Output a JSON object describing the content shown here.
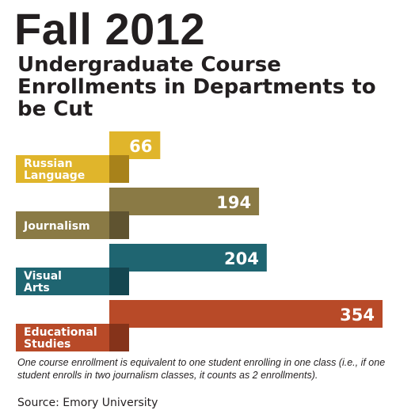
{
  "chart_data": {
    "type": "bar",
    "title": "Fall 2012",
    "subtitle": "Undergraduate Course Enrollments in Departments to be Cut",
    "categories": [
      {
        "name": "Russian Language",
        "lines": [
          "Russian",
          "Language"
        ]
      },
      {
        "name": "Journalism",
        "lines": [
          "Journalism"
        ]
      },
      {
        "name": "Visual Arts",
        "lines": [
          "Visual",
          "Arts"
        ]
      },
      {
        "name": "Educational Studies",
        "lines": [
          "Educational",
          "Studies"
        ]
      }
    ],
    "values": [
      66,
      194,
      204,
      354
    ],
    "colors": [
      "#e0b52b",
      "#8a7a45",
      "#1f6571",
      "#b84a28"
    ],
    "shadow_colors": [
      "#a8821a",
      "#5f5330",
      "#144650",
      "#85331a"
    ],
    "xlim": [
      0,
      354
    ]
  },
  "footnote": "One course enrollment is equivalent to one student enrolling in one class (i.e., if one student enrolls in two journalism classes, it counts as 2 enrollments).",
  "source": "Source: Emory University"
}
